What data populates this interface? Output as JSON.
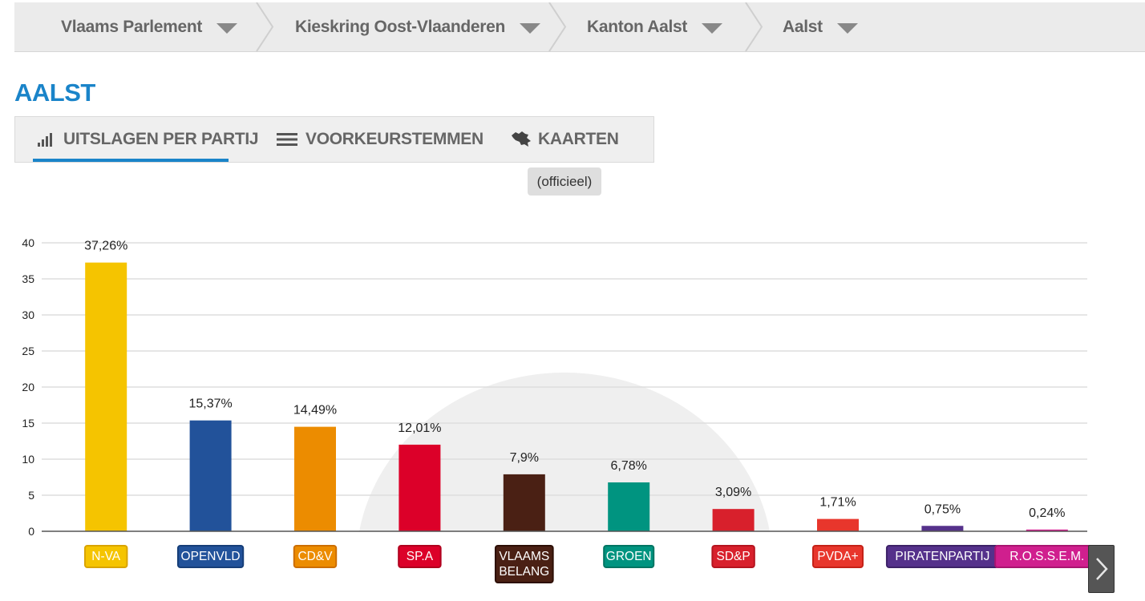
{
  "breadcrumb": [
    {
      "label": "Vlaams Parlement"
    },
    {
      "label": "Kieskring Oost-Vlaanderen"
    },
    {
      "label": "Kanton Aalst"
    },
    {
      "label": "Aalst"
    }
  ],
  "page_title": "AALST",
  "tabs": [
    {
      "label": "UITSLAGEN PER PARTIJ",
      "icon": "bar-chart-icon",
      "active": true
    },
    {
      "label": "VOORKEURSTEMMEN",
      "icon": "list-icon",
      "active": false
    },
    {
      "label": "KAARTEN",
      "icon": "belgium-map-icon",
      "active": false
    }
  ],
  "badge": "(officieel)",
  "chart_data": {
    "type": "bar",
    "categories": [
      "N-VA",
      "OPENVLD",
      "CD&V",
      "SP.A",
      "VLAAMS BELANG",
      "GROEN",
      "SD&P",
      "PVDA+",
      "PIRATENPARTIJ",
      "R.O.S.S.E.M."
    ],
    "values": [
      37.26,
      15.37,
      14.49,
      12.01,
      7.9,
      6.78,
      3.09,
      1.71,
      0.75,
      0.24
    ],
    "value_labels": [
      "37,26%",
      "15,37%",
      "14,49%",
      "12,01%",
      "7,9%",
      "6,78%",
      "3,09%",
      "1,71%",
      "0,75%",
      "0,24%"
    ],
    "category_labels": [
      [
        "N-VA"
      ],
      [
        "OPENVLD"
      ],
      [
        "CD&V"
      ],
      [
        "SP.A"
      ],
      [
        "VLAAMS",
        "BELANG"
      ],
      [
        "GROEN"
      ],
      [
        "SD&P"
      ],
      [
        "PVDA+"
      ],
      [
        "PIRATENPARTIJ"
      ],
      [
        "R.O.S.S.E.M."
      ]
    ],
    "colors": [
      "#f5c400",
      "#22529a",
      "#ec8c00",
      "#dc0029",
      "#4a2014",
      "#009480",
      "#d8202c",
      "#e8362c",
      "#55318b",
      "#d01f8e"
    ],
    "label_border_colors": [
      "#d9a400",
      "#163e78",
      "#cc6e00",
      "#b0001e",
      "#2d0f06",
      "#007563",
      "#b5141f",
      "#c52218",
      "#3d2268",
      "#a81570"
    ],
    "yticks": [
      0,
      5,
      10,
      15,
      20,
      25,
      30,
      35,
      40
    ],
    "ylim": [
      0,
      40
    ],
    "grid": true,
    "xlabel": "",
    "ylabel": ""
  }
}
